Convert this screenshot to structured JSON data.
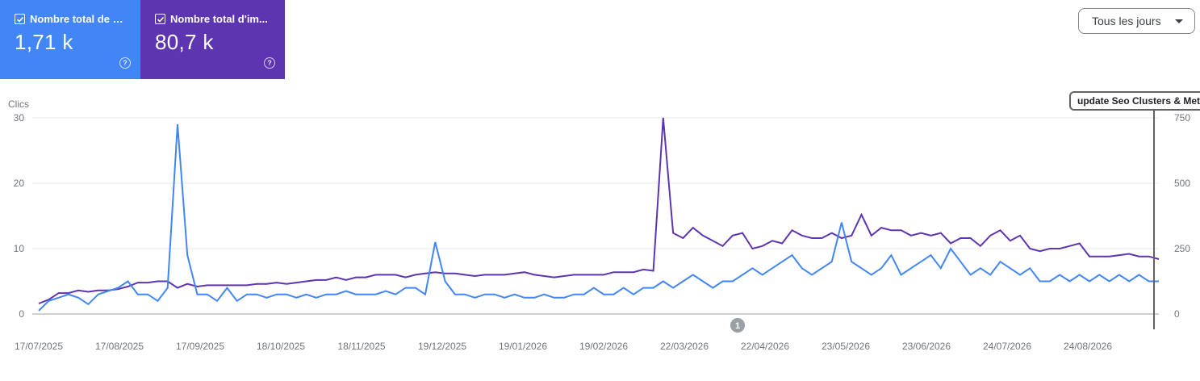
{
  "cards": {
    "clicks": {
      "label": "Nombre total de c...",
      "value": "1,71 k",
      "color": "#4285f4"
    },
    "impressions": {
      "label": "Nombre total d'im...",
      "value": "80,7 k",
      "color": "#5e35b1"
    }
  },
  "date_range": {
    "label": "Tous les jours"
  },
  "annotation": {
    "label": "update Seo Clusters & Meta",
    "marker": "1"
  },
  "chart_data": {
    "type": "line",
    "ylabel": "Clics",
    "y_left": {
      "ticks": [
        "0",
        "10",
        "20",
        "30"
      ],
      "range": [
        0,
        30
      ]
    },
    "y_right": {
      "ticks": [
        "0",
        "250",
        "500",
        "750"
      ],
      "range": [
        0,
        750
      ]
    },
    "x_tick_labels": [
      "17/07/2025",
      "17/08/2025",
      "17/09/2025",
      "18/10/2025",
      "18/11/2025",
      "19/12/2025",
      "19/01/2026",
      "19/02/2026",
      "22/03/2026",
      "22/04/2026",
      "23/05/2026",
      "23/06/2026",
      "24/07/2026",
      "24/08/2026"
    ],
    "x_start_date": "17/07/2025",
    "weekly_clicks": [
      0.5,
      2,
      2.5,
      3,
      2.5,
      1.5,
      3,
      3.5,
      4,
      5,
      3,
      3,
      2,
      4,
      29,
      9,
      3,
      3,
      2,
      4,
      2,
      3,
      3,
      2.5,
      3,
      3,
      2.5,
      3,
      2.5,
      3,
      3,
      3.5,
      3,
      3,
      3,
      3.5,
      3,
      4,
      4,
      3,
      11,
      5,
      3,
      3,
      2.5,
      3,
      3,
      2.5,
      3,
      2.5,
      2.5,
      3,
      2.5,
      2.5,
      3,
      3,
      4,
      3,
      3,
      4,
      3,
      4,
      4,
      5,
      4,
      5,
      6,
      5,
      4,
      5,
      5,
      6,
      7,
      6,
      7,
      8,
      9,
      7,
      6,
      7,
      8,
      14,
      8,
      7,
      6,
      7,
      9,
      6,
      7,
      8,
      9,
      7,
      10,
      8,
      6,
      7,
      6,
      8,
      7,
      6,
      7,
      5,
      5,
      6,
      5,
      6,
      5,
      6,
      5,
      6,
      5,
      6,
      5,
      5
    ],
    "weekly_impressions": [
      40,
      55,
      80,
      80,
      90,
      85,
      90,
      90,
      95,
      105,
      120,
      120,
      125,
      125,
      100,
      115,
      105,
      110,
      110,
      110,
      110,
      110,
      115,
      115,
      120,
      115,
      120,
      125,
      130,
      130,
      140,
      130,
      140,
      140,
      150,
      150,
      150,
      140,
      150,
      155,
      160,
      155,
      155,
      150,
      145,
      150,
      150,
      150,
      155,
      160,
      150,
      145,
      140,
      145,
      150,
      150,
      150,
      150,
      160,
      160,
      160,
      170,
      165,
      750,
      310,
      290,
      330,
      300,
      280,
      260,
      300,
      310,
      250,
      260,
      280,
      270,
      320,
      300,
      290,
      290,
      310,
      290,
      300,
      380,
      300,
      330,
      320,
      320,
      300,
      310,
      300,
      310,
      270,
      290,
      290,
      260,
      300,
      320,
      280,
      300,
      250,
      240,
      250,
      250,
      260,
      270,
      220,
      220,
      220,
      225,
      230,
      220,
      220,
      210
    ],
    "annotations": [
      {
        "marker": "1",
        "date": "22/04/2026"
      }
    ]
  }
}
